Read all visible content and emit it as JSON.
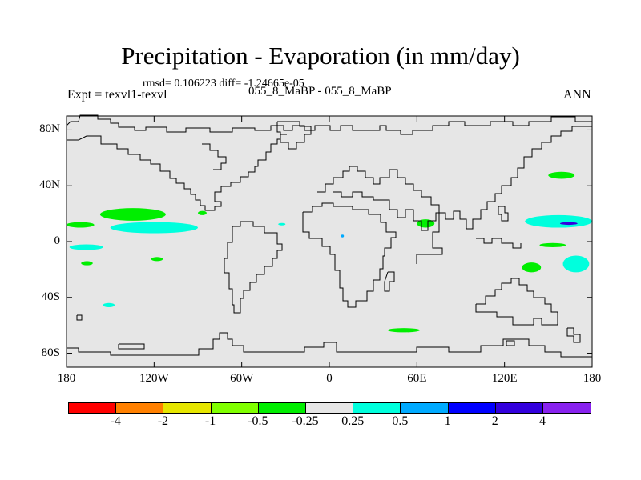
{
  "title": "Precipitation - Evaporation (in mm/day)",
  "stats": "rmsd= 0.106223 diff= -1.24665e-05",
  "experiment": "Expt = texvl1-texvl",
  "cases": "055_8_MaBP - 055_8_MaBP",
  "season": "ANN",
  "lat_labels": [
    {
      "text": "80N",
      "lat": 80
    },
    {
      "text": "40N",
      "lat": 40
    },
    {
      "text": "0",
      "lat": 0
    },
    {
      "text": "40S",
      "lat": -40
    },
    {
      "text": "80S",
      "lat": -80
    }
  ],
  "lon_labels": [
    {
      "text": "180",
      "lon": -180
    },
    {
      "text": "120W",
      "lon": -120
    },
    {
      "text": "60W",
      "lon": -60
    },
    {
      "text": "0",
      "lon": 0
    },
    {
      "text": "60E",
      "lon": 60
    },
    {
      "text": "120E",
      "lon": 120
    },
    {
      "text": "180",
      "lon": 180
    }
  ],
  "colorbar": {
    "colors": [
      "#ff0000",
      "#ff8000",
      "#e6e600",
      "#80ff00",
      "#00ee00",
      "#e6e6e6",
      "#00ffdd",
      "#00aaff",
      "#0000ff",
      "#3300dd",
      "#8822ee"
    ],
    "labels": [
      "-4",
      "-2",
      "-1",
      "-0.5",
      "-0.25",
      "0.25",
      "0.5",
      "1",
      "2",
      "4"
    ]
  },
  "map_background": "#e6e6e6",
  "chart_data": {
    "type": "map",
    "projection": "cylindrical equidistant",
    "lon_range": [
      -180,
      180
    ],
    "lat_range": [
      -90,
      90
    ],
    "variable": "Precipitation - Evaporation",
    "units": "mm/day",
    "patches": [
      {
        "bin": "-0.5 to -0.25",
        "color": "#00ee00",
        "region": "North Pacific",
        "lon": [
          -180,
          -161
        ],
        "lat": [
          10,
          14
        ]
      },
      {
        "bin": "-0.5 to -0.25",
        "color": "#00ee00",
        "region": "North Pacific",
        "lon": [
          -157,
          -112
        ],
        "lat": [
          15,
          24
        ]
      },
      {
        "bin": "0.25 to 0.5",
        "color": "#00ffdd",
        "region": "North Pacific ITCZ",
        "lon": [
          -150,
          -90
        ],
        "lat": [
          6,
          14
        ]
      },
      {
        "bin": "0.25 to 0.5",
        "color": "#00ffdd",
        "region": "Tropical Pacific",
        "lon": [
          -178,
          -155
        ],
        "lat": [
          -6,
          -2
        ]
      },
      {
        "bin": "-0.5 to -0.25",
        "color": "#00ee00",
        "region": "South Pacific",
        "lon": [
          -170,
          -162
        ],
        "lat": [
          -17,
          -14
        ]
      },
      {
        "bin": "-0.5 to -0.25",
        "color": "#00ee00",
        "region": "South Pacific",
        "lon": [
          -122,
          -114
        ],
        "lat": [
          -14,
          -11
        ]
      },
      {
        "bin": "0.25 to 0.5",
        "color": "#00ffdd",
        "region": "South Pacific",
        "lon": [
          -155,
          -147
        ],
        "lat": [
          -47,
          -44
        ]
      },
      {
        "bin": "-0.5 to -0.25",
        "color": "#00ee00",
        "region": "Gulf of Mexico",
        "lon": [
          -90,
          -84
        ],
        "lat": [
          19,
          22
        ]
      },
      {
        "bin": "0.25 to 0.5",
        "color": "#00ffdd",
        "region": "Tropical Atlantic",
        "lon": [
          -35,
          -30
        ],
        "lat": [
          12,
          13
        ]
      },
      {
        "bin": "0.5 to 1",
        "color": "#00aaff",
        "region": "Central Africa",
        "lon": [
          8,
          10
        ],
        "lat": [
          3,
          5
        ]
      },
      {
        "bin": "-0.5 to -0.25",
        "color": "#00ee00",
        "region": "Arabian Sea",
        "lon": [
          60,
          72
        ],
        "lat": [
          10,
          16
        ]
      },
      {
        "bin": "0.25 to 0.5",
        "color": "#00ffdd",
        "region": "Western Pacific",
        "lon": [
          134,
          180
        ],
        "lat": [
          10,
          19
        ]
      },
      {
        "bin": "2 to 4",
        "color": "#3300dd",
        "region": "Western Pacific",
        "lon": [
          158,
          170
        ],
        "lat": [
          12,
          14
        ]
      },
      {
        "bin": "-0.5 to -0.25",
        "color": "#00ee00",
        "region": "North Pacific",
        "lon": [
          150,
          168
        ],
        "lat": [
          45,
          50
        ]
      },
      {
        "bin": "-0.5 to -0.25",
        "color": "#00ee00",
        "region": "Western Pacific",
        "lon": [
          144,
          162
        ],
        "lat": [
          -4,
          -1
        ]
      },
      {
        "bin": "0.25 to 0.5",
        "color": "#00ffdd",
        "region": "Southwest Pacific",
        "lon": [
          160,
          178
        ],
        "lat": [
          -22,
          -10
        ]
      },
      {
        "bin": "-0.5 to -0.25",
        "color": "#00ee00",
        "region": "South Pacific",
        "lon": [
          132,
          145
        ],
        "lat": [
          -22,
          -15
        ]
      },
      {
        "bin": "-0.5 to -0.25",
        "color": "#00ee00",
        "region": "Southern Ocean",
        "lon": [
          40,
          62
        ],
        "lat": [
          -65,
          -62
        ]
      }
    ]
  }
}
